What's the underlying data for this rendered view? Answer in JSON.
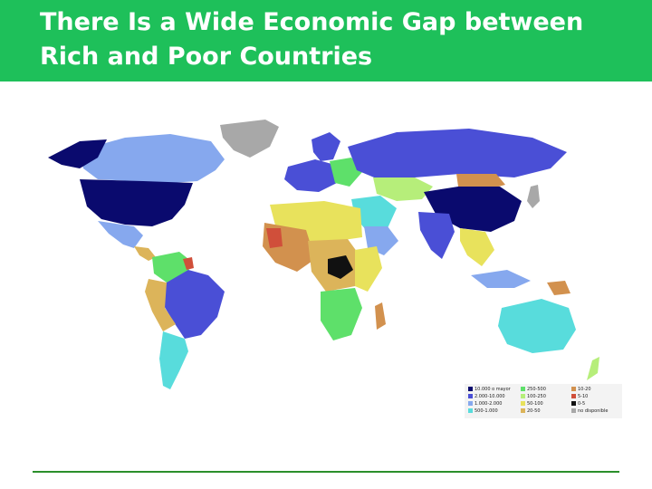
{
  "slide": {
    "title": "There Is a Wide Economic Gap between Rich and Poor Countries"
  },
  "map": {
    "legend": [
      {
        "label": "10.000 o mayor",
        "color": "#0a0a6e"
      },
      {
        "label": "2.000-10.000",
        "color": "#4a4fd6"
      },
      {
        "label": "1.000-2.000",
        "color": "#86a8ee"
      },
      {
        "label": "500-1.000",
        "color": "#58dcdc"
      },
      {
        "label": "250-500",
        "color": "#5ee06a"
      },
      {
        "label": "100-250",
        "color": "#b6ee7a"
      },
      {
        "label": "50-100",
        "color": "#e8e25c"
      },
      {
        "label": "20-50",
        "color": "#dcb45a"
      },
      {
        "label": "10-20",
        "color": "#d2914e"
      },
      {
        "label": "5-10",
        "color": "#d04f3a"
      },
      {
        "label": "0-5",
        "color": "#111111"
      },
      {
        "label": "no disponible",
        "color": "#a8a8a8"
      }
    ],
    "ocean_color": "#ffffff"
  }
}
